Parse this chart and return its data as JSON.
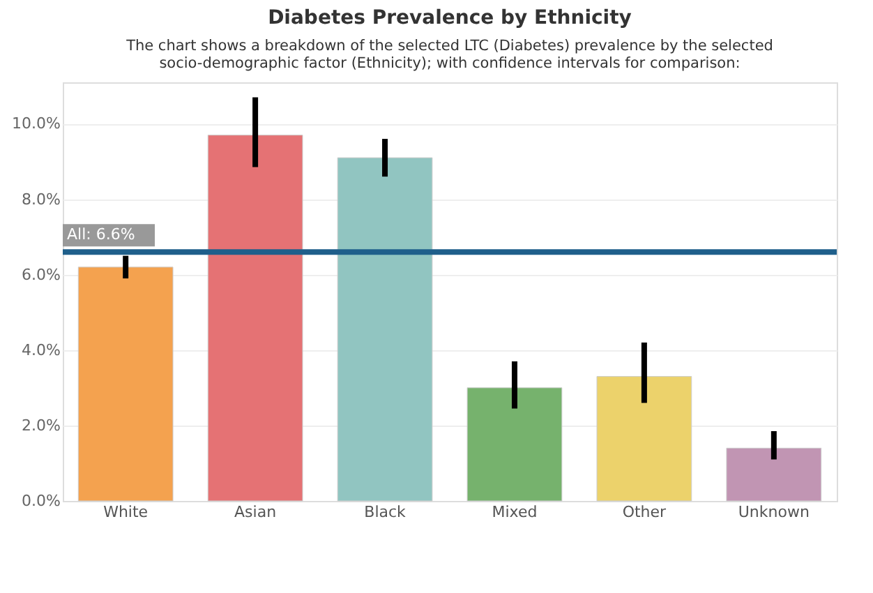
{
  "chart_data": {
    "type": "bar",
    "title": "Diabetes Prevalence by Ethnicity",
    "subtitle": "The chart shows a breakdown of the selected LTC (Diabetes) prevalence by the selected socio-demographic factor (Ethnicity); with confidence intervals for comparison:",
    "categories": [
      "White",
      "Asian",
      "Black",
      "Mixed",
      "Other",
      "Unknown"
    ],
    "values": [
      6.2,
      9.7,
      9.1,
      3.0,
      3.3,
      1.4
    ],
    "colors": [
      "#f4a24f",
      "#e57274",
      "#91c5c1",
      "#76b26d",
      "#ecd26b",
      "#c195b3"
    ],
    "errors": [
      [
        5.9,
        6.5
      ],
      [
        8.85,
        10.7
      ],
      [
        8.6,
        9.6
      ],
      [
        2.45,
        3.7
      ],
      [
        2.6,
        4.2
      ],
      [
        1.1,
        1.85
      ]
    ],
    "ylim": [
      0,
      11.1
    ],
    "yticks": [
      {
        "value": 0,
        "label": "0.0%"
      },
      {
        "value": 2,
        "label": "2.0%"
      },
      {
        "value": 4,
        "label": "4.0%"
      },
      {
        "value": 6,
        "label": "6.0%"
      },
      {
        "value": 8,
        "label": "8.0%"
      },
      {
        "value": 10,
        "label": "10.0%"
      }
    ],
    "ref_lines": [
      {
        "axis": "y",
        "value": 6.6,
        "label": "All: 6.6%",
        "color": "#1f5f8b"
      }
    ],
    "grid": "y",
    "legend": false
  }
}
